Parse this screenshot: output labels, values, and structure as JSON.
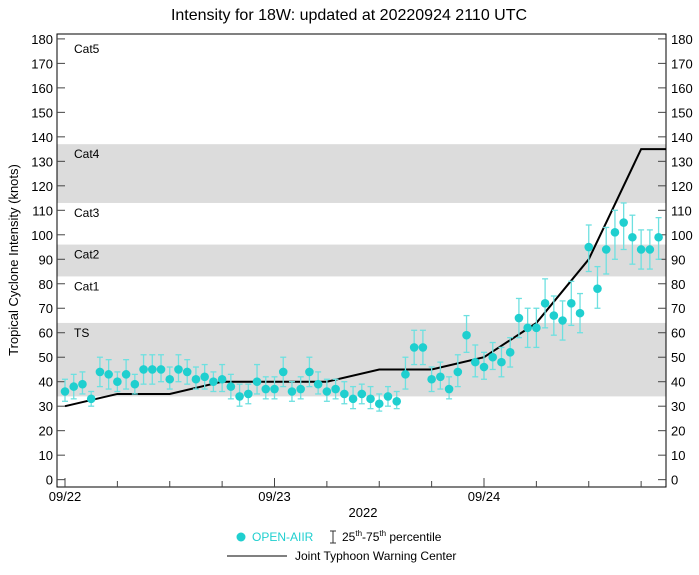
{
  "chart_data": {
    "type": "scatter",
    "title": "Intensity for 18W: updated at 20220924 2110 UTC",
    "ylabel": "Tropical Cyclone Intensity (knots)",
    "xlabel": "2022",
    "ylim": [
      0,
      180
    ],
    "yticks": [
      0,
      10,
      20,
      30,
      40,
      50,
      60,
      70,
      80,
      90,
      100,
      110,
      120,
      130,
      140,
      150,
      160,
      170,
      180
    ],
    "xticks": [
      {
        "hour": 0,
        "label": "09/22"
      },
      {
        "hour": 24,
        "label": "09/23"
      },
      {
        "hour": 48,
        "label": "09/24"
      }
    ],
    "x_unit": "hours since 09/22 00 UTC",
    "categories": [
      {
        "label": "TS",
        "min": 34,
        "max": 64,
        "shaded": true
      },
      {
        "label": "Cat1",
        "min": 64,
        "max": 83,
        "shaded": false
      },
      {
        "label": "Cat2",
        "min": 83,
        "max": 96,
        "shaded": true
      },
      {
        "label": "Cat3",
        "min": 96,
        "max": 113,
        "shaded": false
      },
      {
        "label": "Cat4",
        "min": 113,
        "max": 137,
        "shaded": true
      },
      {
        "label": "Cat5",
        "min": 137,
        "max": 182,
        "shaded": false
      }
    ],
    "series": [
      {
        "name": "OPEN-AIIR",
        "color": "#1fcfcf",
        "values": [
          36,
          38,
          39,
          33,
          44,
          43,
          40,
          43,
          39,
          45,
          45,
          45,
          41,
          45,
          44,
          41,
          42,
          40,
          41,
          38,
          34,
          35,
          40,
          37,
          37,
          44,
          36,
          37,
          44,
          39,
          36,
          37,
          35,
          33,
          35,
          33,
          31,
          34,
          32,
          43,
          54,
          54,
          41,
          42,
          37,
          44,
          59,
          48,
          46,
          50,
          48,
          52,
          66,
          62,
          62,
          72,
          67,
          65,
          72,
          68,
          95,
          78,
          94,
          101,
          105,
          99,
          94,
          94,
          99
        ],
        "p25": [
          32,
          33,
          35,
          30,
          38,
          37,
          36,
          37,
          35,
          39,
          39,
          40,
          37,
          40,
          39,
          37,
          37,
          36,
          36,
          33,
          30,
          31,
          35,
          33,
          33,
          38,
          32,
          33,
          38,
          35,
          32,
          33,
          31,
          29,
          31,
          29,
          28,
          30,
          29,
          37,
          47,
          47,
          36,
          37,
          33,
          38,
          52,
          42,
          41,
          45,
          42,
          46,
          58,
          54,
          54,
          62,
          59,
          57,
          63,
          60,
          85,
          70,
          84,
          90,
          94,
          88,
          86,
          86,
          90
        ],
        "p75": [
          41,
          43,
          44,
          36,
          50,
          49,
          44,
          49,
          43,
          51,
          51,
          51,
          46,
          51,
          49,
          46,
          47,
          44,
          47,
          43,
          39,
          39,
          47,
          42,
          42,
          50,
          40,
          42,
          50,
          44,
          41,
          41,
          40,
          38,
          39,
          38,
          35,
          38,
          36,
          50,
          61,
          61,
          46,
          48,
          42,
          51,
          67,
          55,
          52,
          56,
          54,
          58,
          74,
          70,
          70,
          82,
          75,
          73,
          81,
          76,
          104,
          87,
          103,
          110,
          113,
          108,
          102,
          102,
          107
        ]
      },
      {
        "name": "Joint Typhoon Warning Center",
        "color": "#000000",
        "hours": [
          0,
          6,
          12,
          18,
          30,
          36,
          42,
          48,
          54,
          60,
          66,
          69
        ],
        "values": [
          30,
          35,
          35,
          40,
          40,
          45,
          45,
          50,
          64,
          90,
          135,
          135
        ]
      }
    ],
    "legend": {
      "placement": "bottom",
      "dot_label": "OPEN-AIIR",
      "percentile_label": "25",
      "percentile_sup1": "th",
      "percentile_mid": "-75",
      "percentile_sup2": "th",
      "percentile_tail": " percentile",
      "line_label": "Joint Typhoon Warning Center"
    }
  }
}
